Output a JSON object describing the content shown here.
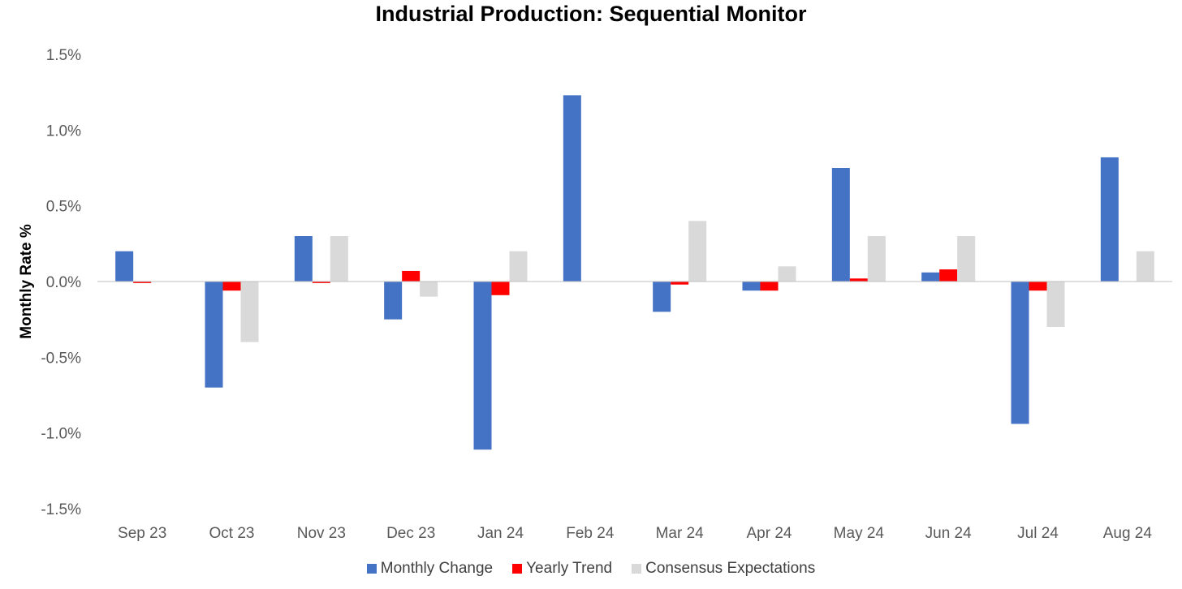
{
  "chart_data": {
    "type": "bar",
    "title": "Industrial Production: Sequential Monitor",
    "ylabel": "Monthly Rate %",
    "xlabel": "",
    "ylim": [
      -1.5,
      1.5
    ],
    "yticks": [
      1.5,
      1.0,
      0.5,
      0.0,
      -0.5,
      -1.0,
      -1.5
    ],
    "ytick_labels": [
      "1.5%",
      "1.0%",
      "0.5%",
      "0.0%",
      "-0.5%",
      "-1.0%",
      "-1.5%"
    ],
    "categories": [
      "Sep 23",
      "Oct 23",
      "Nov 23",
      "Dec 23",
      "Jan 24",
      "Feb 24",
      "Mar 24",
      "Apr 24",
      "May 24",
      "Jun 24",
      "Jul 24",
      "Aug 24"
    ],
    "series": [
      {
        "name": "Monthly Change",
        "color": "#4472c4",
        "values": [
          0.2,
          -0.7,
          0.3,
          -0.25,
          -1.11,
          1.23,
          -0.2,
          -0.06,
          0.75,
          0.06,
          -0.94,
          0.82
        ]
      },
      {
        "name": "Yearly Trend",
        "color": "#ff0000",
        "values": [
          -0.01,
          -0.06,
          -0.01,
          0.07,
          -0.09,
          0.0,
          -0.02,
          -0.06,
          0.02,
          0.08,
          -0.06,
          0.0
        ]
      },
      {
        "name": "Consensus Expectations",
        "color": "#d9d9d9",
        "values": [
          0.0,
          -0.4,
          0.3,
          -0.1,
          0.2,
          0.0,
          0.4,
          0.1,
          0.3,
          0.3,
          -0.3,
          0.2
        ]
      }
    ],
    "grid": false,
    "legend_position": "bottom"
  }
}
